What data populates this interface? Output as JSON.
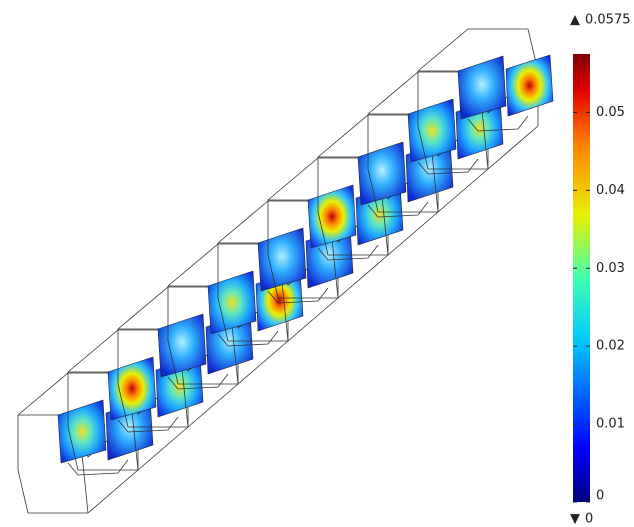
{
  "colorbar": {
    "range": [
      0,
      0.0575
    ],
    "ticks": [
      0,
      0.01,
      0.02,
      0.03,
      0.04,
      0.05
    ]
  }
}
